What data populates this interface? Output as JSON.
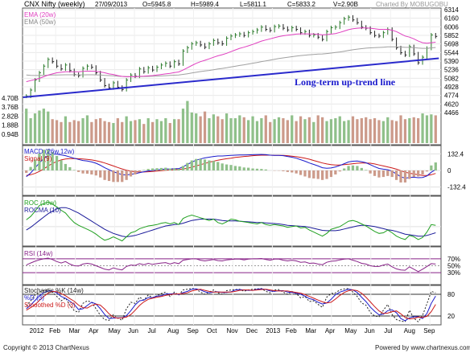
{
  "header": {
    "symbol": "CNX Nifty (weekly)",
    "date": "27/09/2013",
    "open": "O=5945.8",
    "high": "H=5989.4",
    "low": "L=5811.1",
    "close": "C=5833.2",
    "volume": "V=2.90B",
    "charted_by": "Charted By MOBUGOBU"
  },
  "footer": {
    "copyright": "Copyright © 2013 ChartNexus",
    "powered": "Powered by www.chartnexus.com"
  },
  "colors": {
    "background": "#ffffff",
    "ema20": "#e040c0",
    "ema50": "#a0a0a0",
    "trendline": "#2a2acc",
    "volume_up": "#8fc08a",
    "volume_down": "#cc9a8a",
    "macd": "#1a1acc",
    "signal": "#cc1a1a",
    "roc": "#20a020",
    "rocma": "#1a1a99",
    "rsi": "#882288",
    "stoch_k": "#222222",
    "stoch_d": "#1a1acc",
    "stoch_smoothed": "#cc1a1a"
  },
  "chart_data": [
    {
      "id": "price",
      "type": "line",
      "title": "CNX Nifty (weekly)",
      "legend": [
        "EMA (20w)",
        "EMA (50w)"
      ],
      "annotation": "Long-term up-trend line",
      "y_ticks": [
        "6314",
        "6160",
        "6006",
        "5852",
        "5698",
        "5544",
        "5390",
        "5236",
        "5082",
        "4928",
        "4774",
        "4620",
        "4466"
      ],
      "volume_ticks": [
        "4.70B",
        "3.76B",
        "2.82B",
        "1.88B",
        "0.94B"
      ],
      "ylim": [
        4466,
        6314
      ],
      "x_labels": [
        "2012",
        "Feb",
        "Mar",
        "Apr",
        "May",
        "Jun",
        "Jul",
        "Aug",
        "Sep",
        "Oct",
        "Nov",
        "Dec",
        "2013",
        "Feb",
        "Mar",
        "Apr",
        "May",
        "Jun",
        "Jul",
        "Aug",
        "Sep"
      ],
      "close": [
        4760,
        4870,
        5050,
        5180,
        5300,
        5420,
        5380,
        5300,
        5250,
        5320,
        5220,
        5150,
        5130,
        5260,
        5300,
        5280,
        5180,
        5050,
        4950,
        4910,
        5000,
        4920,
        4880,
        5050,
        5140,
        5120,
        5250,
        5200,
        5270,
        5230,
        5280,
        5320,
        5350,
        5300,
        5380,
        5340,
        5570,
        5630,
        5700,
        5720,
        5680,
        5640,
        5700,
        5760,
        5720,
        5700,
        5800,
        5840,
        5860,
        5880,
        5850,
        5900,
        5920,
        5950,
        6000,
        5960,
        5940,
        6010,
        6020,
        5980,
        5950,
        5990,
        5960,
        5900,
        5920,
        5850,
        5860,
        5820,
        5780,
        5920,
        5990,
        6000,
        6080,
        6150,
        6180,
        6130,
        6080,
        6000,
        5980,
        5900,
        5850,
        5840,
        5900,
        5960,
        5780,
        5630,
        5540,
        5500,
        5650,
        5520,
        5360,
        5460,
        5620,
        5860,
        5833
      ],
      "ema20": [
        5020,
        5040,
        5060,
        5080,
        5110,
        5140,
        5160,
        5180,
        5190,
        5200,
        5200,
        5200,
        5200,
        5205,
        5210,
        5210,
        5205,
        5195,
        5180,
        5160,
        5150,
        5130,
        5115,
        5110,
        5110,
        5110,
        5115,
        5118,
        5125,
        5130,
        5140,
        5150,
        5160,
        5170,
        5185,
        5195,
        5230,
        5270,
        5310,
        5350,
        5380,
        5405,
        5430,
        5460,
        5485,
        5505,
        5530,
        5560,
        5590,
        5620,
        5640,
        5665,
        5690,
        5720,
        5750,
        5770,
        5790,
        5810,
        5830,
        5845,
        5855,
        5865,
        5875,
        5880,
        5880,
        5878,
        5876,
        5870,
        5862,
        5866,
        5875,
        5885,
        5905,
        5930,
        5955,
        5970,
        5980,
        5985,
        5985,
        5980,
        5970,
        5960,
        5960,
        5960,
        5945,
        5920,
        5880,
        5840,
        5820,
        5790,
        5750,
        5720,
        5710,
        5720,
        5730
      ],
      "ema50": [
        5140,
        5135,
        5132,
        5132,
        5134,
        5138,
        5140,
        5142,
        5143,
        5145,
        5145,
        5144,
        5143,
        5143,
        5144,
        5144,
        5143,
        5140,
        5135,
        5130,
        5126,
        5120,
        5115,
        5113,
        5112,
        5112,
        5113,
        5114,
        5116,
        5118,
        5121,
        5125,
        5129,
        5133,
        5138,
        5142,
        5152,
        5164,
        5177,
        5190,
        5202,
        5212,
        5223,
        5236,
        5248,
        5258,
        5270,
        5284,
        5298,
        5312,
        5324,
        5338,
        5352,
        5366,
        5382,
        5395,
        5408,
        5422,
        5436,
        5448,
        5459,
        5470,
        5480,
        5489,
        5497,
        5504,
        5510,
        5515,
        5519,
        5526,
        5535,
        5544,
        5555,
        5568,
        5582,
        5594,
        5605,
        5614,
        5622,
        5628,
        5632,
        5636,
        5640,
        5645,
        5647,
        5646,
        5642,
        5637,
        5637,
        5633,
        5624,
        5619,
        5619,
        5628,
        5634
      ],
      "trendline": [
        [
          0,
          4740
        ],
        [
          94,
          5440
        ]
      ],
      "volume": [
        3.6,
        2.6,
        3.1,
        3.4,
        3.6,
        3.3,
        2.5,
        2.4,
        2.2,
        2.8,
        2.2,
        2.4,
        2.3,
        2.6,
        2.9,
        2.2,
        2.5,
        2.6,
        2.3,
        2.2,
        2.1,
        2.6,
        2.2,
        2.8,
        2.3,
        2.4,
        2.5,
        2.0,
        2.6,
        2.2,
        2.5,
        2.3,
        2.6,
        2.1,
        2.5,
        2.5,
        3.6,
        4.4,
        3.2,
        3.1,
        2.8,
        3.3,
        2.6,
        3.0,
        2.8,
        2.5,
        3.1,
        2.6,
        2.6,
        2.9,
        2.7,
        2.4,
        2.8,
        2.3,
        2.6,
        2.9,
        2.2,
        2.5,
        2.7,
        2.6,
        2.4,
        2.9,
        2.3,
        2.8,
        2.5,
        2.7,
        2.2,
        2.9,
        2.7,
        2.3,
        2.5,
        2.6,
        2.8,
        2.3,
        2.4,
        2.8,
        2.5,
        2.6,
        2.7,
        2.5,
        2.6,
        2.4,
        2.3,
        2.7,
        2.4,
        2.3,
        2.9,
        2.5,
        2.6,
        2.7,
        2.6,
        3.1,
        2.9,
        3.0,
        2.9
      ]
    },
    {
      "id": "macd",
      "type": "line",
      "legend": [
        "MACD (26w,12w)",
        "Signal (9)"
      ],
      "y_ticks": [
        "132.4",
        "0",
        "-132.4"
      ],
      "ylim": [
        -180,
        180
      ],
      "macd": [
        -50,
        -20,
        20,
        60,
        95,
        120,
        130,
        130,
        125,
        118,
        108,
        98,
        88,
        80,
        75,
        68,
        58,
        42,
        22,
        6,
        -10,
        -22,
        -34,
        -36,
        -30,
        -26,
        -18,
        -10,
        -4,
        0,
        4,
        8,
        12,
        12,
        14,
        14,
        30,
        48,
        66,
        82,
        92,
        100,
        106,
        112,
        116,
        116,
        118,
        120,
        122,
        124,
        124,
        125,
        126,
        127,
        128,
        126,
        122,
        120,
        120,
        118,
        112,
        106,
        98,
        86,
        74,
        60,
        48,
        36,
        22,
        18,
        20,
        28,
        40,
        54,
        68,
        74,
        76,
        70,
        62,
        46,
        30,
        16,
        10,
        6,
        -6,
        -28,
        -50,
        -62,
        -56,
        -54,
        -58,
        -56,
        -44,
        -14,
        8
      ],
      "signal": [
        -40,
        -34,
        -24,
        -8,
        12,
        36,
        56,
        72,
        84,
        92,
        95,
        96,
        94,
        92,
        88,
        84,
        78,
        70,
        60,
        48,
        36,
        24,
        12,
        2,
        -6,
        -10,
        -12,
        -12,
        -10,
        -8,
        -5,
        -2,
        1,
        4,
        6,
        8,
        12,
        18,
        26,
        36,
        46,
        56,
        66,
        74,
        82,
        88,
        94,
        98,
        104,
        108,
        112,
        114,
        118,
        120,
        122,
        122,
        122,
        121,
        121,
        121,
        118,
        114,
        110,
        104,
        98,
        90,
        80,
        70,
        60,
        52,
        46,
        44,
        44,
        46,
        50,
        54,
        58,
        60,
        60,
        58,
        52,
        44,
        36,
        28,
        20,
        10,
        -2,
        -14,
        -22,
        -28,
        -34,
        -40,
        -40,
        -34,
        -24
      ]
    },
    {
      "id": "roc",
      "type": "line",
      "legend": [
        "ROC (10w)",
        "ROCMA (10)"
      ],
      "roc": [
        20,
        30,
        45,
        62,
        68,
        72,
        66,
        58,
        48,
        40,
        25,
        12,
        4,
        -2,
        -8,
        -14,
        -22,
        -32,
        -40,
        -36,
        -30,
        -36,
        -42,
        -30,
        -18,
        -14,
        -6,
        -2,
        2,
        4,
        6,
        10,
        12,
        8,
        12,
        6,
        24,
        30,
        34,
        30,
        26,
        22,
        18,
        22,
        12,
        8,
        14,
        22,
        20,
        16,
        14,
        12,
        10,
        8,
        12,
        6,
        4,
        6,
        4,
        2,
        -2,
        0,
        2,
        -4,
        -2,
        -10,
        -16,
        -22,
        -28,
        -20,
        -8,
        -4,
        0,
        8,
        16,
        18,
        14,
        8,
        2,
        -6,
        -14,
        -20,
        -18,
        -10,
        -18,
        -28,
        -34,
        -38,
        -26,
        -30,
        -38,
        -32,
        -16,
        6,
        4
      ],
      "rocma": [
        -10,
        -2,
        8,
        18,
        28,
        38,
        46,
        52,
        56,
        56,
        52,
        46,
        40,
        32,
        24,
        16,
        8,
        0,
        -8,
        -14,
        -20,
        -24,
        -28,
        -30,
        -28,
        -26,
        -22,
        -18,
        -14,
        -10,
        -6,
        -2,
        2,
        4,
        6,
        7,
        10,
        14,
        18,
        20,
        22,
        22,
        22,
        22,
        20,
        18,
        17,
        17,
        17,
        16,
        15,
        14,
        13,
        12,
        12,
        11,
        10,
        9,
        8,
        6,
        4,
        3,
        2,
        1,
        0,
        -2,
        -5,
        -8,
        -11,
        -12,
        -12,
        -12,
        -10,
        -7,
        -4,
        -1,
        2,
        4,
        4,
        2,
        0,
        -3,
        -6,
        -9,
        -11,
        -14,
        -18,
        -22,
        -24,
        -26,
        -28,
        -28,
        -26,
        -22,
        -18
      ]
    },
    {
      "id": "rsi",
      "type": "line",
      "legend": [
        "RSI (14w)"
      ],
      "y_ticks": [
        "70%",
        "50%",
        "30%"
      ],
      "ylim": [
        0,
        100
      ],
      "rsi": [
        52,
        58,
        63,
        67,
        70,
        72,
        68,
        62,
        58,
        62,
        55,
        50,
        49,
        55,
        57,
        55,
        50,
        45,
        40,
        38,
        44,
        40,
        38,
        48,
        52,
        51,
        56,
        53,
        57,
        54,
        56,
        58,
        59,
        55,
        59,
        56,
        66,
        68,
        70,
        70,
        66,
        64,
        66,
        68,
        65,
        64,
        67,
        68,
        69,
        69,
        67,
        69,
        70,
        70,
        71,
        68,
        66,
        69,
        69,
        66,
        64,
        66,
        64,
        60,
        61,
        57,
        58,
        55,
        53,
        60,
        63,
        64,
        67,
        69,
        70,
        66,
        62,
        57,
        55,
        50,
        48,
        48,
        52,
        55,
        47,
        41,
        38,
        37,
        47,
        40,
        33,
        40,
        48,
        56,
        55
      ]
    },
    {
      "id": "stochastic",
      "type": "line",
      "legend": [
        "Stochastic %K (14w)",
        "%D (3)",
        "Smoothed %D (3)"
      ],
      "y_ticks": [
        "80",
        "20"
      ],
      "ylim": [
        0,
        100
      ],
      "k": [
        48,
        62,
        78,
        86,
        90,
        92,
        86,
        74,
        62,
        70,
        50,
        35,
        30,
        55,
        62,
        58,
        40,
        22,
        10,
        8,
        24,
        14,
        8,
        40,
        58,
        55,
        72,
        64,
        78,
        70,
        76,
        82,
        86,
        74,
        86,
        78,
        92,
        94,
        96,
        94,
        86,
        80,
        86,
        92,
        84,
        80,
        90,
        92,
        93,
        94,
        88,
        92,
        94,
        95,
        96,
        88,
        84,
        92,
        93,
        86,
        80,
        88,
        82,
        70,
        74,
        60,
        62,
        52,
        44,
        72,
        82,
        84,
        92,
        95,
        96,
        86,
        74,
        56,
        50,
        30,
        20,
        18,
        36,
        52,
        24,
        10,
        6,
        4,
        36,
        14,
        4,
        22,
        54,
        88,
        84
      ],
      "d": [
        40,
        50,
        63,
        75,
        85,
        89,
        89,
        84,
        74,
        69,
        61,
        52,
        38,
        40,
        49,
        58,
        53,
        40,
        24,
        13,
        14,
        15,
        15,
        21,
        35,
        51,
        62,
        64,
        71,
        71,
        75,
        76,
        81,
        81,
        82,
        79,
        85,
        88,
        94,
        95,
        92,
        87,
        84,
        86,
        87,
        85,
        85,
        87,
        92,
        93,
        92,
        91,
        91,
        94,
        95,
        93,
        89,
        88,
        90,
        90,
        86,
        85,
        83,
        80,
        75,
        68,
        65,
        58,
        53,
        56,
        66,
        79,
        86,
        90,
        94,
        92,
        85,
        72,
        60,
        45,
        33,
        23,
        25,
        35,
        37,
        29,
        13,
        7,
        15,
        18,
        18,
        13,
        27,
        55,
        75
      ],
      "smoothed": [
        36,
        43,
        51,
        63,
        74,
        83,
        88,
        87,
        82,
        76,
        68,
        61,
        50,
        43,
        42,
        49,
        53,
        50,
        39,
        26,
        17,
        14,
        15,
        17,
        24,
        36,
        49,
        59,
        66,
        69,
        72,
        74,
        77,
        79,
        81,
        81,
        82,
        84,
        89,
        92,
        94,
        91,
        88,
        86,
        86,
        86,
        86,
        86,
        88,
        91,
        92,
        92,
        91,
        92,
        93,
        94,
        92,
        90,
        89,
        89,
        89,
        87,
        85,
        83,
        79,
        74,
        69,
        64,
        59,
        56,
        58,
        67,
        77,
        85,
        90,
        92,
        90,
        83,
        72,
        59,
        46,
        34,
        27,
        28,
        32,
        34,
        26,
        16,
        12,
        13,
        17,
        16,
        19,
        32,
        52
      ]
    }
  ]
}
